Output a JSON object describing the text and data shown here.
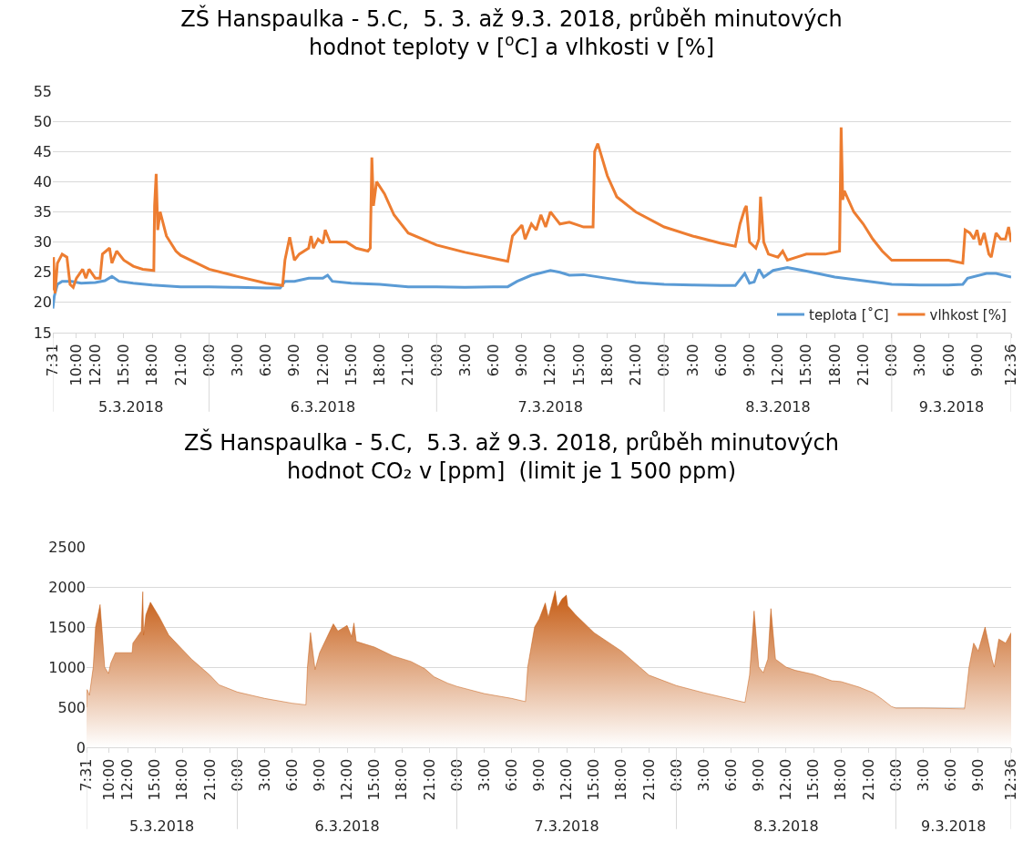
{
  "chart_data": [
    {
      "type": "line",
      "title": "ZŠ Hanspaulka - 5.C,  5. 3. až 9.3. 2018, průběh minutových\nhodnot teploty v [$^{o}$C] a vlhkosti v [%]",
      "xlim": [
        "2018-03-05T07:31",
        "2018-03-09T12:36"
      ],
      "xticks": [
        {
          "value": "2018-03-05T07:31",
          "label": "7:31"
        },
        {
          "value": "2018-03-05T10:00",
          "label": "10:00"
        },
        {
          "value": "2018-03-05T12:00",
          "label": "12:00"
        },
        {
          "value": "2018-03-05T15:00",
          "label": "15:00"
        },
        {
          "value": "2018-03-05T18:00",
          "label": "18:00"
        },
        {
          "value": "2018-03-05T21:00",
          "label": "21:00"
        },
        {
          "value": "2018-03-06T00:00",
          "label": "0:00"
        },
        {
          "value": "2018-03-06T03:00",
          "label": "3:00"
        },
        {
          "value": "2018-03-06T06:00",
          "label": "6:00"
        },
        {
          "value": "2018-03-06T09:00",
          "label": "9:00"
        },
        {
          "value": "2018-03-06T12:00",
          "label": "12:00"
        },
        {
          "value": "2018-03-06T15:00",
          "label": "15:00"
        },
        {
          "value": "2018-03-06T18:00",
          "label": "18:00"
        },
        {
          "value": "2018-03-06T21:00",
          "label": "21:00"
        },
        {
          "value": "2018-03-07T00:00",
          "label": "0:00"
        },
        {
          "value": "2018-03-07T03:00",
          "label": "3:00"
        },
        {
          "value": "2018-03-07T06:00",
          "label": "6:00"
        },
        {
          "value": "2018-03-07T09:00",
          "label": "9:00"
        },
        {
          "value": "2018-03-07T12:00",
          "label": "12:00"
        },
        {
          "value": "2018-03-07T15:00",
          "label": "15:00"
        },
        {
          "value": "2018-03-07T18:00",
          "label": "18:00"
        },
        {
          "value": "2018-03-07T21:00",
          "label": "21:00"
        },
        {
          "value": "2018-03-08T00:00",
          "label": "0:00"
        },
        {
          "value": "2018-03-08T03:00",
          "label": "3:00"
        },
        {
          "value": "2018-03-08T06:00",
          "label": "6:00"
        },
        {
          "value": "2018-03-08T09:00",
          "label": "9:00"
        },
        {
          "value": "2018-03-08T12:00",
          "label": "12:00"
        },
        {
          "value": "2018-03-08T15:00",
          "label": "15:00"
        },
        {
          "value": "2018-03-08T18:00",
          "label": "18:00"
        },
        {
          "value": "2018-03-08T21:00",
          "label": "21:00"
        },
        {
          "value": "2018-03-09T00:00",
          "label": "0:00"
        },
        {
          "value": "2018-03-09T03:00",
          "label": "3:00"
        },
        {
          "value": "2018-03-09T06:00",
          "label": "6:00"
        },
        {
          "value": "2018-03-09T09:00",
          "label": "9:00"
        },
        {
          "value": "2018-03-09T12:36",
          "label": "12:36"
        }
      ],
      "x2lim": [
        "2018-03-05T07:31",
        "2018-03-09T12:36"
      ],
      "x2ticks": [
        {
          "value": "2018-03-05T15:45",
          "label": "5.3.2018"
        },
        {
          "value": "2018-03-06T00:00",
          "label": null
        },
        {
          "value": "2018-03-06T12:00",
          "label": "6.3.2018"
        },
        {
          "value": "2018-03-07T00:00",
          "label": null
        },
        {
          "value": "2018-03-07T12:00",
          "label": "7.3.2018"
        },
        {
          "value": "2018-03-08T00:00",
          "label": null
        },
        {
          "value": "2018-03-08T12:00",
          "label": "8.3.2018"
        },
        {
          "value": "2018-03-09T00:00",
          "label": null
        },
        {
          "value": "2018-03-09T06:18",
          "label": "9.3.2018"
        }
      ],
      "ylim": [
        15,
        55
      ],
      "yticks": [
        15,
        20,
        25,
        30,
        35,
        40,
        45,
        50,
        55
      ],
      "grid": "y",
      "legend": "bottom right",
      "series": [
        {
          "name": "teplota [˚C]",
          "color": "#5b9bd5",
          "x": [
            "2018-03-05T07:31",
            "2018-03-05T07:40",
            "2018-03-05T08:00",
            "2018-03-05T08:30",
            "2018-03-05T09:30",
            "2018-03-05T10:30",
            "2018-03-05T12:00",
            "2018-03-05T13:00",
            "2018-03-05T13:45",
            "2018-03-05T14:30",
            "2018-03-05T16:00",
            "2018-03-05T18:00",
            "2018-03-05T21:00",
            "2018-03-06T00:00",
            "2018-03-06T03:00",
            "2018-03-06T06:00",
            "2018-03-06T07:30",
            "2018-03-06T08:00",
            "2018-03-06T09:00",
            "2018-03-06T10:30",
            "2018-03-06T12:00",
            "2018-03-06T12:30",
            "2018-03-06T13:00",
            "2018-03-06T15:00",
            "2018-03-06T18:00",
            "2018-03-06T21:00",
            "2018-03-07T00:00",
            "2018-03-07T03:00",
            "2018-03-07T06:00",
            "2018-03-07T07:30",
            "2018-03-07T08:30",
            "2018-03-07T10:00",
            "2018-03-07T12:00",
            "2018-03-07T13:00",
            "2018-03-07T14:00",
            "2018-03-07T15:30",
            "2018-03-07T18:00",
            "2018-03-07T21:00",
            "2018-03-08T00:00",
            "2018-03-08T03:00",
            "2018-03-08T06:00",
            "2018-03-08T07:30",
            "2018-03-08T08:30",
            "2018-03-08T09:00",
            "2018-03-08T09:30",
            "2018-03-08T10:00",
            "2018-03-08T10:30",
            "2018-03-08T11:30",
            "2018-03-08T13:00",
            "2018-03-08T15:00",
            "2018-03-08T18:00",
            "2018-03-08T21:00",
            "2018-03-09T00:00",
            "2018-03-09T03:00",
            "2018-03-09T06:00",
            "2018-03-09T07:30",
            "2018-03-09T08:00",
            "2018-03-09T10:00",
            "2018-03-09T11:00",
            "2018-03-09T12:36"
          ],
          "values": [
            19,
            21,
            23,
            23.5,
            23.5,
            23.2,
            23.3,
            23.6,
            24.3,
            23.5,
            23.2,
            22.9,
            22.6,
            22.6,
            22.5,
            22.4,
            22.4,
            23.5,
            23.5,
            24,
            24,
            24.5,
            23.5,
            23.2,
            23,
            22.6,
            22.6,
            22.5,
            22.6,
            22.6,
            23.5,
            24.5,
            25.3,
            25,
            24.5,
            24.6,
            24,
            23.3,
            23,
            22.9,
            22.8,
            22.8,
            24.8,
            23.2,
            23.4,
            25.5,
            24.2,
            25.3,
            25.8,
            25.2,
            24.2,
            23.6,
            23,
            22.9,
            22.9,
            23,
            24,
            24.8,
            24.8,
            24.2
          ]
        },
        {
          "name": "vlhkost [%]",
          "color": "#ed7d31",
          "x": [
            "2018-03-05T07:31",
            "2018-03-05T07:35",
            "2018-03-05T07:45",
            "2018-03-05T08:00",
            "2018-03-05T08:30",
            "2018-03-05T09:00",
            "2018-03-05T09:20",
            "2018-03-05T09:40",
            "2018-03-05T10:00",
            "2018-03-05T10:40",
            "2018-03-05T11:00",
            "2018-03-05T11:20",
            "2018-03-05T12:00",
            "2018-03-05T12:30",
            "2018-03-05T12:45",
            "2018-03-05T13:30",
            "2018-03-05T13:45",
            "2018-03-05T14:15",
            "2018-03-05T15:00",
            "2018-03-05T16:00",
            "2018-03-05T17:00",
            "2018-03-05T18:10",
            "2018-03-05T18:15",
            "2018-03-05T18:25",
            "2018-03-05T18:35",
            "2018-03-05T18:50",
            "2018-03-05T19:30",
            "2018-03-05T20:30",
            "2018-03-05T21:00",
            "2018-03-06T00:00",
            "2018-03-06T03:00",
            "2018-03-06T06:00",
            "2018-03-06T07:45",
            "2018-03-06T08:00",
            "2018-03-06T08:30",
            "2018-03-06T09:00",
            "2018-03-06T09:30",
            "2018-03-06T10:30",
            "2018-03-06T10:45",
            "2018-03-06T11:00",
            "2018-03-06T11:30",
            "2018-03-06T12:00",
            "2018-03-06T12:15",
            "2018-03-06T12:45",
            "2018-03-06T13:30",
            "2018-03-06T14:30",
            "2018-03-06T15:30",
            "2018-03-06T16:45",
            "2018-03-06T17:00",
            "2018-03-06T17:10",
            "2018-03-06T17:20",
            "2018-03-06T17:40",
            "2018-03-06T18:30",
            "2018-03-06T19:30",
            "2018-03-06T21:00",
            "2018-03-07T00:00",
            "2018-03-07T03:00",
            "2018-03-07T06:00",
            "2018-03-07T07:30",
            "2018-03-07T08:00",
            "2018-03-07T09:00",
            "2018-03-07T09:20",
            "2018-03-07T10:00",
            "2018-03-07T10:30",
            "2018-03-07T11:00",
            "2018-03-07T11:30",
            "2018-03-07T12:00",
            "2018-03-07T12:30",
            "2018-03-07T13:00",
            "2018-03-07T14:00",
            "2018-03-07T15:30",
            "2018-03-07T16:30",
            "2018-03-07T16:40",
            "2018-03-07T17:00",
            "2018-03-07T18:00",
            "2018-03-07T19:00",
            "2018-03-07T21:00",
            "2018-03-08T00:00",
            "2018-03-08T03:00",
            "2018-03-08T06:00",
            "2018-03-08T07:30",
            "2018-03-08T08:00",
            "2018-03-08T08:30",
            "2018-03-08T08:40",
            "2018-03-08T09:00",
            "2018-03-08T09:40",
            "2018-03-08T10:00",
            "2018-03-08T10:10",
            "2018-03-08T10:30",
            "2018-03-08T11:00",
            "2018-03-08T12:00",
            "2018-03-08T12:30",
            "2018-03-08T13:00",
            "2018-03-08T14:00",
            "2018-03-08T15:00",
            "2018-03-08T17:00",
            "2018-03-08T18:30",
            "2018-03-08T18:40",
            "2018-03-08T18:50",
            "2018-03-08T19:00",
            "2018-03-08T20:00",
            "2018-03-08T21:00",
            "2018-03-08T22:00",
            "2018-03-08T23:00",
            "2018-03-09T00:00",
            "2018-03-09T02:00",
            "2018-03-09T06:00",
            "2018-03-09T07:30",
            "2018-03-09T07:45",
            "2018-03-09T08:15",
            "2018-03-09T08:40",
            "2018-03-09T09:00",
            "2018-03-09T09:20",
            "2018-03-09T09:45",
            "2018-03-09T10:15",
            "2018-03-09T10:30",
            "2018-03-09T11:00",
            "2018-03-09T11:30",
            "2018-03-09T12:00",
            "2018-03-09T12:20",
            "2018-03-09T12:36"
          ],
          "values": [
            22,
            27.5,
            21.5,
            26.5,
            28,
            27.5,
            23,
            22.5,
            24,
            25.5,
            24,
            25.5,
            24,
            24,
            28,
            29,
            26.5,
            28.5,
            27,
            26,
            25.5,
            25.3,
            36,
            41.3,
            32,
            35,
            31,
            28.5,
            27.8,
            25.5,
            24.3,
            23.2,
            22.8,
            27,
            30.8,
            27,
            28,
            29,
            31,
            29,
            30.5,
            29.8,
            32,
            30,
            30,
            30,
            29,
            28.5,
            29,
            44,
            36,
            40,
            38,
            34.5,
            31.5,
            29.5,
            28.3,
            27.3,
            26.8,
            31,
            32.8,
            30.5,
            33,
            32,
            34.5,
            32.5,
            35,
            34,
            33,
            33.3,
            32.5,
            32.5,
            45,
            46.3,
            41,
            37.5,
            35,
            32.5,
            31,
            29.8,
            29.3,
            33,
            35.5,
            36,
            30,
            29,
            30.5,
            37.5,
            30,
            28,
            27.5,
            28.5,
            27,
            27.5,
            28,
            28,
            28.5,
            49,
            37,
            38.5,
            35,
            33,
            30.5,
            28.5,
            27,
            27,
            27,
            26.5,
            32,
            31.5,
            30.5,
            32,
            29.5,
            31.5,
            28,
            27.5,
            31.5,
            30.5,
            30.5,
            32.5,
            30
          ]
        }
      ]
    },
    {
      "type": "area",
      "title": "ZŠ Hanspaulka - 5.C,  5.3. až 9.3. 2018, průběh minutových\nhodnot CO₂ v [ppm]  (limit je 1 500 ppm)",
      "xlim": [
        "2018-03-05T07:31",
        "2018-03-09T12:36"
      ],
      "xticks": [
        {
          "value": "2018-03-05T07:31",
          "label": "7:31"
        },
        {
          "value": "2018-03-05T10:00",
          "label": "10:00"
        },
        {
          "value": "2018-03-05T12:00",
          "label": "12:00"
        },
        {
          "value": "2018-03-05T15:00",
          "label": "15:00"
        },
        {
          "value": "2018-03-05T18:00",
          "label": "18:00"
        },
        {
          "value": "2018-03-05T21:00",
          "label": "21:00"
        },
        {
          "value": "2018-03-06T00:00",
          "label": "0:00"
        },
        {
          "value": "2018-03-06T03:00",
          "label": "3:00"
        },
        {
          "value": "2018-03-06T06:00",
          "label": "6:00"
        },
        {
          "value": "2018-03-06T09:00",
          "label": "9:00"
        },
        {
          "value": "2018-03-06T12:00",
          "label": "12:00"
        },
        {
          "value": "2018-03-06T15:00",
          "label": "15:00"
        },
        {
          "value": "2018-03-06T18:00",
          "label": "18:00"
        },
        {
          "value": "2018-03-06T21:00",
          "label": "21:00"
        },
        {
          "value": "2018-03-07T00:00",
          "label": "0:00"
        },
        {
          "value": "2018-03-07T03:00",
          "label": "3:00"
        },
        {
          "value": "2018-03-07T06:00",
          "label": "6:00"
        },
        {
          "value": "2018-03-07T09:00",
          "label": "9:00"
        },
        {
          "value": "2018-03-07T12:00",
          "label": "12:00"
        },
        {
          "value": "2018-03-07T15:00",
          "label": "15:00"
        },
        {
          "value": "2018-03-07T18:00",
          "label": "18:00"
        },
        {
          "value": "2018-03-07T21:00",
          "label": "21:00"
        },
        {
          "value": "2018-03-08T00:00",
          "label": "0:00"
        },
        {
          "value": "2018-03-08T03:00",
          "label": "3:00"
        },
        {
          "value": "2018-03-08T06:00",
          "label": "6:00"
        },
        {
          "value": "2018-03-08T09:00",
          "label": "9:00"
        },
        {
          "value": "2018-03-08T12:00",
          "label": "12:00"
        },
        {
          "value": "2018-03-08T15:00",
          "label": "15:00"
        },
        {
          "value": "2018-03-08T18:00",
          "label": "18:00"
        },
        {
          "value": "2018-03-08T21:00",
          "label": "21:00"
        },
        {
          "value": "2018-03-09T00:00",
          "label": "0:00"
        },
        {
          "value": "2018-03-09T03:00",
          "label": "3:00"
        },
        {
          "value": "2018-03-09T06:00",
          "label": "6:00"
        },
        {
          "value": "2018-03-09T09:00",
          "label": "9:00"
        },
        {
          "value": "2018-03-09T12:36",
          "label": "12:36"
        }
      ],
      "x2lim": [
        "2018-03-05T07:31",
        "2018-03-09T12:36"
      ],
      "x2ticks": [
        {
          "value": "2018-03-05T15:45",
          "label": "5.3.2018"
        },
        {
          "value": "2018-03-06T00:00",
          "label": null
        },
        {
          "value": "2018-03-06T12:00",
          "label": "6.3.2018"
        },
        {
          "value": "2018-03-07T00:00",
          "label": null
        },
        {
          "value": "2018-03-07T12:00",
          "label": "7.3.2018"
        },
        {
          "value": "2018-03-08T00:00",
          "label": null
        },
        {
          "value": "2018-03-08T12:00",
          "label": "8.3.2018"
        },
        {
          "value": "2018-03-09T00:00",
          "label": null
        },
        {
          "value": "2018-03-09T06:18",
          "label": "9.3.2018"
        }
      ],
      "ylim": [
        0,
        2500
      ],
      "yticks": [
        0,
        500,
        1000,
        1500,
        2000,
        2500
      ],
      "grid": "y",
      "series": [
        {
          "color": "#c55a11",
          "x": [
            "2018-03-05T07:31",
            "2018-03-05T07:35",
            "2018-03-05T07:50",
            "2018-03-05T08:15",
            "2018-03-05T08:30",
            "2018-03-05T09:00",
            "2018-03-05T09:15",
            "2018-03-05T09:30",
            "2018-03-05T09:55",
            "2018-03-05T10:10",
            "2018-03-05T10:40",
            "2018-03-05T12:00",
            "2018-03-05T12:30",
            "2018-03-05T12:35",
            "2018-03-05T13:30",
            "2018-03-05T13:40",
            "2018-03-05T13:45",
            "2018-03-05T14:00",
            "2018-03-05T14:30",
            "2018-03-05T15:30",
            "2018-03-05T16:30",
            "2018-03-05T18:00",
            "2018-03-05T19:00",
            "2018-03-05T21:00",
            "2018-03-05T22:00",
            "2018-03-06T00:00",
            "2018-03-06T03:00",
            "2018-03-06T06:00",
            "2018-03-06T07:30",
            "2018-03-06T07:40",
            "2018-03-06T08:00",
            "2018-03-06T08:30",
            "2018-03-06T09:00",
            "2018-03-06T10:00",
            "2018-03-06T10:30",
            "2018-03-06T11:00",
            "2018-03-06T12:00",
            "2018-03-06T12:30",
            "2018-03-06T12:45",
            "2018-03-06T13:00",
            "2018-03-06T15:00",
            "2018-03-06T17:00",
            "2018-03-06T19:00",
            "2018-03-06T20:30",
            "2018-03-06T21:30",
            "2018-03-06T23:00",
            "2018-03-07T00:00",
            "2018-03-07T03:00",
            "2018-03-07T06:00",
            "2018-03-07T07:30",
            "2018-03-07T07:45",
            "2018-03-07T08:30",
            "2018-03-07T09:00",
            "2018-03-07T09:40",
            "2018-03-07T10:00",
            "2018-03-07T10:45",
            "2018-03-07T11:00",
            "2018-03-07T11:30",
            "2018-03-07T12:00",
            "2018-03-07T12:05",
            "2018-03-07T12:10",
            "2018-03-07T13:00",
            "2018-03-07T15:00",
            "2018-03-07T18:00",
            "2018-03-07T20:00",
            "2018-03-07T21:00",
            "2018-03-08T00:00",
            "2018-03-08T03:00",
            "2018-03-08T06:00",
            "2018-03-08T07:30",
            "2018-03-08T08:00",
            "2018-03-08T08:30",
            "2018-03-08T09:00",
            "2018-03-08T09:30",
            "2018-03-08T10:00",
            "2018-03-08T10:20",
            "2018-03-08T10:50",
            "2018-03-08T12:00",
            "2018-03-08T13:00",
            "2018-03-08T15:00",
            "2018-03-08T17:00",
            "2018-03-08T18:00",
            "2018-03-08T20:00",
            "2018-03-08T21:30",
            "2018-03-08T22:30",
            "2018-03-08T23:30",
            "2018-03-09T00:00",
            "2018-03-09T03:00",
            "2018-03-09T07:30",
            "2018-03-09T08:00",
            "2018-03-09T08:30",
            "2018-03-09T09:00",
            "2018-03-09T09:45",
            "2018-03-09T10:30",
            "2018-03-09T10:45",
            "2018-03-09T11:15",
            "2018-03-09T12:00",
            "2018-03-09T12:36"
          ],
          "values": [
            500,
            720,
            650,
            1000,
            1500,
            1780,
            1400,
            1000,
            920,
            1050,
            1180,
            1180,
            1180,
            1300,
            1450,
            1940,
            1400,
            1650,
            1810,
            1620,
            1400,
            1220,
            1100,
            900,
            780,
            690,
            610,
            550,
            530,
            1000,
            1430,
            970,
            1180,
            1420,
            1540,
            1450,
            1520,
            1380,
            1550,
            1320,
            1250,
            1140,
            1070,
            980,
            880,
            800,
            760,
            670,
            610,
            570,
            1000,
            1500,
            1600,
            1800,
            1620,
            1950,
            1750,
            1850,
            1900,
            null,
            1760,
            1650,
            1430,
            1200,
            1000,
            900,
            770,
            680,
            600,
            560,
            900,
            1700,
            1000,
            930,
            1100,
            1730,
            1100,
            1000,
            960,
            910,
            830,
            820,
            750,
            680,
            600,
            510,
            490,
            490,
            480,
            1000,
            1300,
            1200,
            1500,
            1100,
            1000,
            1350,
            1300,
            1430
          ]
        }
      ]
    }
  ]
}
